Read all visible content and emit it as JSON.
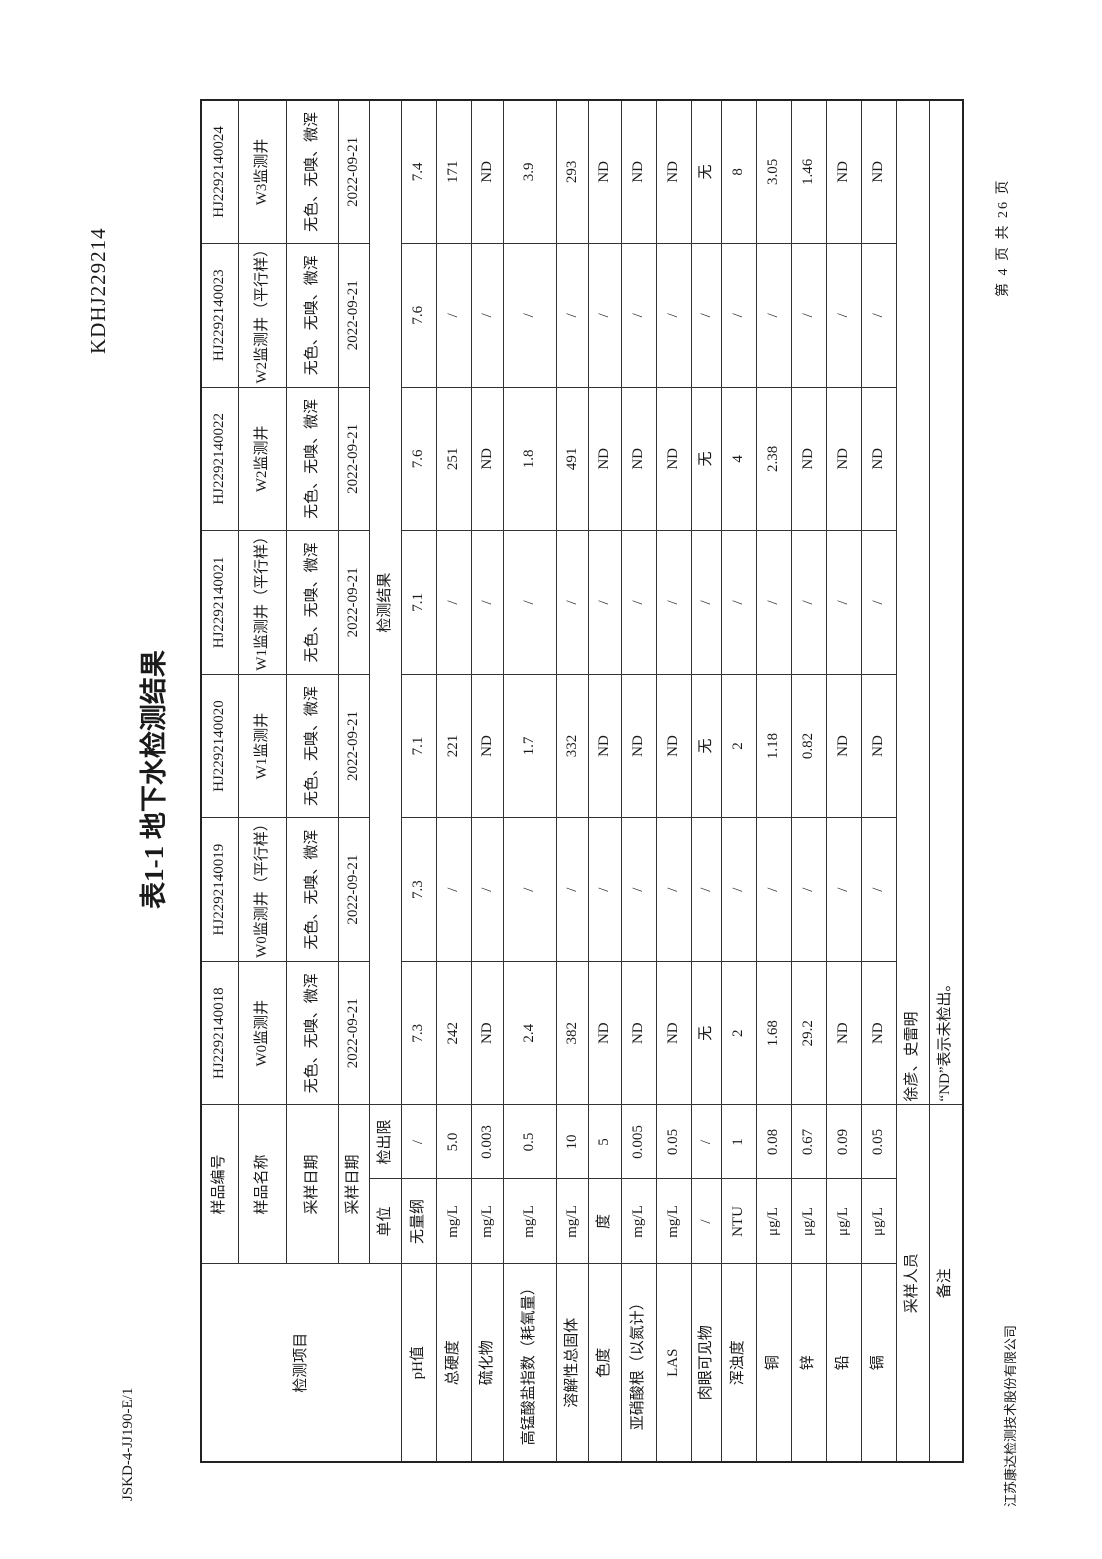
{
  "header": {
    "doc_number": "KDHJ229214",
    "form_number": "JSKD-4-JJ190-E/1",
    "title": "表1-1 地下水检测结果"
  },
  "labels": {
    "sample_id": "样品编号",
    "sample_name": "样品名称",
    "sample_date": "采样日期",
    "sample_date_2": "采样日期",
    "item": "检测项目",
    "unit": "单位",
    "limit": "检出限",
    "results": "检测结果",
    "sampler": "采样人员",
    "remarks": "备注"
  },
  "samples": [
    {
      "id": "HJ2292140018",
      "name": "W0监测井",
      "appearance": "无色、无嗅、微浑",
      "date": "2022-09-21"
    },
    {
      "id": "HJ2292140019",
      "name": "W0监测井（平行样）",
      "appearance": "无色、无嗅、微浑",
      "date": "2022-09-21"
    },
    {
      "id": "HJ2292140020",
      "name": "W1监测井",
      "appearance": "无色、无嗅、微浑",
      "date": "2022-09-21"
    },
    {
      "id": "HJ2292140021",
      "name": "W1监测井（平行样）",
      "appearance": "无色、无嗅、微浑",
      "date": "2022-09-21"
    },
    {
      "id": "HJ2292140022",
      "name": "W2监测井",
      "appearance": "无色、无嗅、微浑",
      "date": "2022-09-21"
    },
    {
      "id": "HJ2292140023",
      "name": "W2监测井（平行样）",
      "appearance": "无色、无嗅、微浑",
      "date": "2022-09-21"
    },
    {
      "id": "HJ2292140024",
      "name": "W3监测井",
      "appearance": "无色、无嗅、微浑",
      "date": "2022-09-21"
    }
  ],
  "rows": [
    {
      "item": "pH值",
      "unit": "无量纲",
      "limit": "/",
      "values": [
        "7.3",
        "7.3",
        "7.1",
        "7.1",
        "7.6",
        "7.6",
        "7.4"
      ]
    },
    {
      "item": "总硬度",
      "unit": "mg/L",
      "limit": "5.0",
      "values": [
        "242",
        "/",
        "221",
        "/",
        "251",
        "/",
        "171"
      ]
    },
    {
      "item": "硫化物",
      "unit": "mg/L",
      "limit": "0.003",
      "values": [
        "ND",
        "/",
        "ND",
        "/",
        "ND",
        "/",
        "ND"
      ]
    },
    {
      "item": "高锰酸盐指数（耗氧量）",
      "unit": "mg/L",
      "limit": "0.5",
      "values": [
        "2.4",
        "/",
        "1.7",
        "/",
        "1.8",
        "/",
        "3.9"
      ]
    },
    {
      "item": "溶解性总固体",
      "unit": "mg/L",
      "limit": "10",
      "values": [
        "382",
        "/",
        "332",
        "/",
        "491",
        "/",
        "293"
      ]
    },
    {
      "item": "色度",
      "unit": "度",
      "limit": "5",
      "values": [
        "ND",
        "/",
        "ND",
        "/",
        "ND",
        "/",
        "ND"
      ]
    },
    {
      "item": "亚硝酸根（以氮计）",
      "unit": "mg/L",
      "limit": "0.005",
      "values": [
        "ND",
        "/",
        "ND",
        "/",
        "ND",
        "/",
        "ND"
      ]
    },
    {
      "item": "LAS",
      "unit": "mg/L",
      "limit": "0.05",
      "values": [
        "ND",
        "/",
        "ND",
        "/",
        "ND",
        "/",
        "ND"
      ]
    },
    {
      "item": "肉眼可见物",
      "unit": "/",
      "limit": "/",
      "values": [
        "无",
        "/",
        "无",
        "/",
        "无",
        "/",
        "无"
      ]
    },
    {
      "item": "浑浊度",
      "unit": "NTU",
      "limit": "1",
      "values": [
        "2",
        "/",
        "2",
        "/",
        "4",
        "/",
        "8"
      ]
    },
    {
      "item": "铜",
      "unit": "μg/L",
      "limit": "0.08",
      "values": [
        "1.68",
        "/",
        "1.18",
        "/",
        "2.38",
        "/",
        "3.05"
      ]
    },
    {
      "item": "锌",
      "unit": "μg/L",
      "limit": "0.67",
      "values": [
        "29.2",
        "/",
        "0.82",
        "/",
        "ND",
        "/",
        "1.46"
      ]
    },
    {
      "item": "铅",
      "unit": "μg/L",
      "limit": "0.09",
      "values": [
        "ND",
        "/",
        "ND",
        "/",
        "ND",
        "/",
        "ND"
      ]
    },
    {
      "item": "镉",
      "unit": "μg/L",
      "limit": "0.05",
      "values": [
        "ND",
        "/",
        "ND",
        "/",
        "ND",
        "/",
        "ND"
      ]
    }
  ],
  "sampler": "徐彦、史雷明",
  "remarks": "“ND”表示未检出。",
  "footer": {
    "company": "江苏康达检测技术股份有限公司",
    "page": "第 4 页 共 26 页"
  }
}
